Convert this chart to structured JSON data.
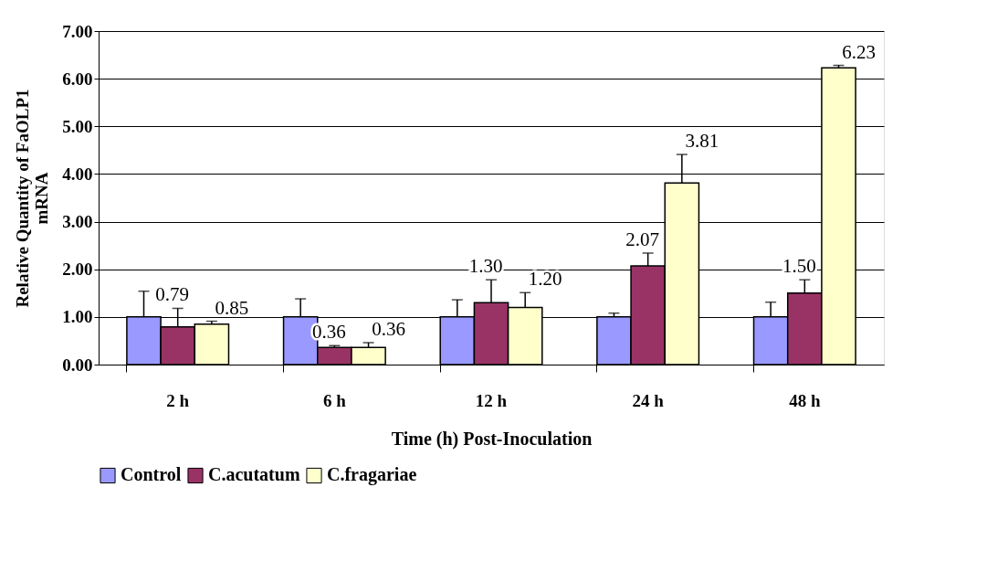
{
  "chart_data": {
    "type": "bar",
    "xlabel": "Time (h) Post-Inoculation",
    "ylabel": "Relative Quantity of FaOLP1 mRNA",
    "categories": [
      "2 h",
      "6 h",
      "12 h",
      "24 h",
      "48 h"
    ],
    "series": [
      {
        "name": "Control",
        "color": "#9999ff",
        "values": [
          1.0,
          1.0,
          1.0,
          1.0,
          1.0
        ],
        "errors": [
          0.54,
          0.38,
          0.36,
          0.08,
          0.31
        ],
        "value_labels": [
          null,
          null,
          null,
          null,
          null
        ]
      },
      {
        "name": "C.acutatum",
        "color": "#993366",
        "values": [
          0.79,
          0.36,
          1.3,
          2.07,
          1.5
        ],
        "errors": [
          0.39,
          0.04,
          0.48,
          0.27,
          0.28
        ],
        "value_labels": [
          "0.79",
          "0.36",
          "1.30",
          "2.07",
          "1.50"
        ]
      },
      {
        "name": "C.fragariae",
        "color": "#ffffcc",
        "values": [
          0.85,
          0.36,
          1.2,
          3.81,
          6.23
        ],
        "errors": [
          0.06,
          0.1,
          0.31,
          0.6,
          0.05
        ],
        "value_labels": [
          "0.85",
          "0.36",
          "1.20",
          "3.81",
          "6.23"
        ]
      }
    ],
    "ylim": [
      0,
      7
    ],
    "yticks": [
      {
        "value": 0,
        "label": "0.00"
      },
      {
        "value": 1,
        "label": "1.00"
      },
      {
        "value": 2,
        "label": "2.00"
      },
      {
        "value": 3,
        "label": "3.00"
      },
      {
        "value": 4,
        "label": "4.00"
      },
      {
        "value": 5,
        "label": "5.00"
      },
      {
        "value": 6,
        "label": "6.00"
      },
      {
        "value": 7,
        "label": "7.00"
      }
    ],
    "grid": "y",
    "legend": "bottom"
  }
}
